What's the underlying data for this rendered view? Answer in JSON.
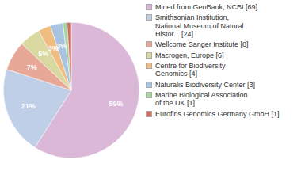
{
  "chart_data": {
    "type": "pie",
    "categories": [
      "Mined from GenBank, NCBI [69]",
      "Smithsonian Institution,\nNational Museum of Natural\nHistor... [24]",
      "Wellcome Sanger Institute [8]",
      "Macrogen, Europe [6]",
      "Centre for Biodiversity\nGenomics [4]",
      "Naturalis Biodiversity Center [3]",
      "Marine Biological Association\nof the UK [1]",
      "Eurofins Genomics Germany GmbH [1]"
    ],
    "values": [
      59,
      21,
      7,
      5,
      3,
      3,
      1,
      1
    ],
    "value_labels": [
      "59%",
      "21%",
      "7%",
      "5%",
      "3%",
      "3%",
      null,
      null
    ],
    "colors": [
      "#dbb8d8",
      "#bfcfe8",
      "#e8a898",
      "#d8d8a0",
      "#f0bc80",
      "#a8c4e0",
      "#a8d4a0",
      "#cc7060"
    ],
    "data_labels": true,
    "legend": "right"
  }
}
